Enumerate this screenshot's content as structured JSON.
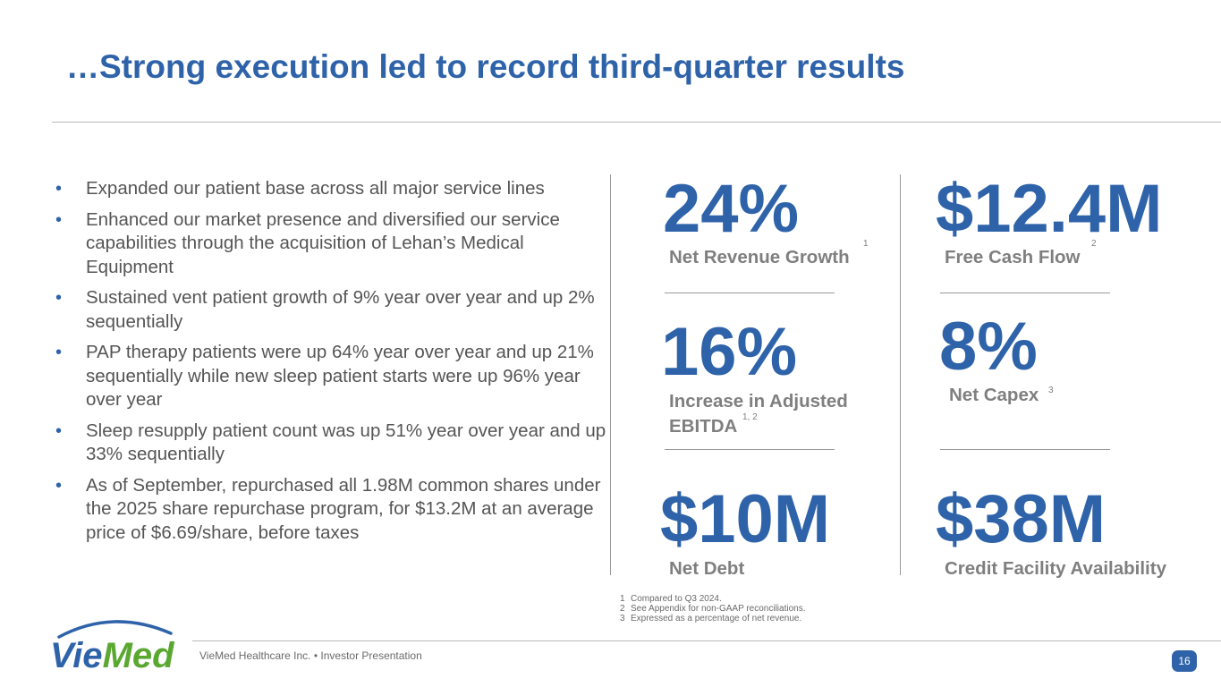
{
  "slide": {
    "title": "…Strong execution led to record third-quarter results"
  },
  "bullets": [
    {
      "marker": "•",
      "text": "Expanded our patient base across all major service lines"
    },
    {
      "marker": "•",
      "text": "Enhanced our market presence and diversified our service capabilities through the acquisition of Lehan’s Medical Equipment"
    },
    {
      "marker": "•",
      "text": "Sustained vent patient growth of 9% year over year and up 2% sequentially"
    },
    {
      "marker": "•",
      "text": "PAP therapy patients were up 64% year over year and up 21% sequentially while new sleep patient starts were up 96% year over year"
    },
    {
      "marker": "•",
      "text": "Sleep resupply patient count was up 51% year over year and up 33% sequentially"
    },
    {
      "marker": "•",
      "text": "As of September, repurchased all 1.98M common shares under the 2025 share repurchase program, for $13.2M at an average price of $6.69/share, before taxes"
    }
  ],
  "metrics": {
    "revenue_growth": {
      "value": "24%",
      "label": "Net Revenue Growth",
      "note": "1"
    },
    "free_cash_flow": {
      "value": "$12.4M",
      "label": "Free Cash Flow",
      "note": "2"
    },
    "adj_ebitda": {
      "value": "16%",
      "label_line1": "Increase in Adjusted",
      "label_line2": "EBITDA",
      "note": "1, 2"
    },
    "net_capex": {
      "value": "8%",
      "label": "Net Capex",
      "note": "3"
    },
    "net_debt": {
      "value": "$10M",
      "label": "Net Debt"
    },
    "credit": {
      "value": "$38M",
      "label": "Credit Facility Availability"
    }
  },
  "footnotes": [
    {
      "num": "1",
      "text": "Compared to Q3 2024."
    },
    {
      "num": "2",
      "text": "See Appendix for non-GAAP reconciliations."
    },
    {
      "num": "3",
      "text": "Expressed as a percentage of net revenue."
    }
  ],
  "footer": {
    "text": "VieMed Healthcare Inc.  •  Investor Presentation",
    "page": "16",
    "logo_text": "VieMed"
  },
  "colors": {
    "accent": "#2f63a9",
    "logo_green": "#5aa832",
    "label_gray": "#7f7f7f"
  }
}
